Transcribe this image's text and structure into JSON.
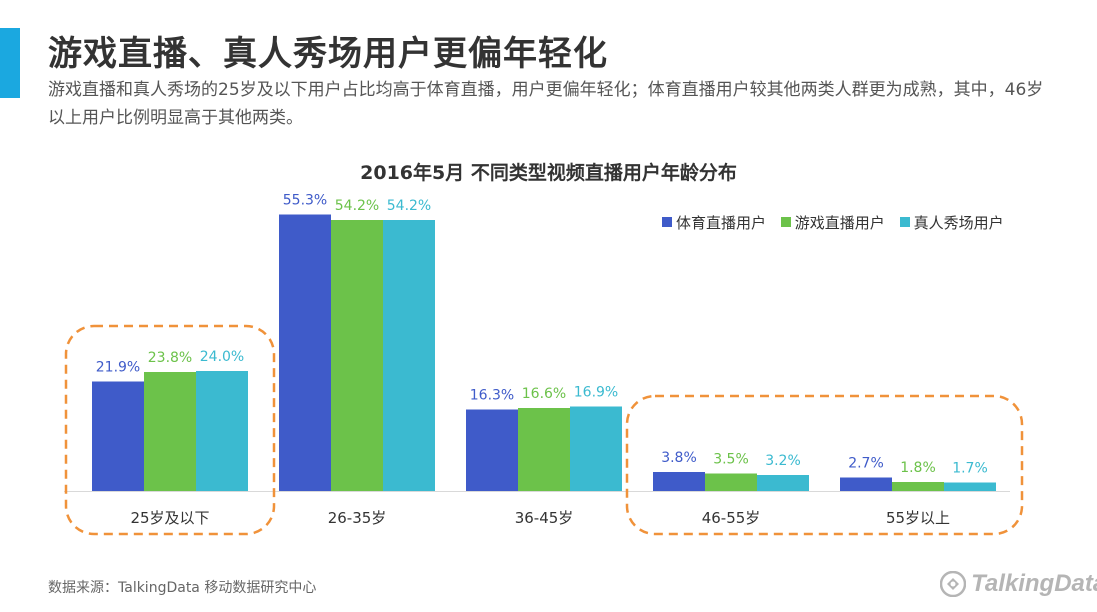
{
  "page": {
    "title": "游戏直播、真人秀场用户更偏年轻化",
    "subtitle": "游戏直播和真人秀场的25岁及以下用户占比均高于体育直播，用户更偏年轻化；体育直播用户较其他两类人群更为成熟，其中，46岁以上用户比例明显高于其他两类。",
    "source": "数据来源：TalkingData 移动数据研究中心",
    "logo_text": "TalkingData",
    "accent_color": "#1ba8e0"
  },
  "chart_data": {
    "type": "bar",
    "title": "2016年5月  不同类型视频直播用户年龄分布",
    "categories": [
      "25岁及以下",
      "26-35岁",
      "36-45岁",
      "46-55岁",
      "55岁以上"
    ],
    "series": [
      {
        "name": "体育直播用户",
        "color": "#3f5bc9",
        "values": [
          21.9,
          55.3,
          16.3,
          3.8,
          2.7
        ]
      },
      {
        "name": "游戏直播用户",
        "color": "#6cc24a",
        "values": [
          23.8,
          54.2,
          16.6,
          3.5,
          1.8
        ]
      },
      {
        "name": "真人秀场用户",
        "color": "#3bbad0",
        "values": [
          24.0,
          54.2,
          16.9,
          3.2,
          1.7
        ]
      }
    ],
    "value_format": "%",
    "ylim": [
      0,
      60
    ],
    "grid": false,
    "legend_position": "top-right",
    "highlight_color": "#f0923a",
    "highlight_groups": [
      [
        "25岁及以下"
      ],
      [
        "46-55岁",
        "55岁以上"
      ]
    ]
  }
}
